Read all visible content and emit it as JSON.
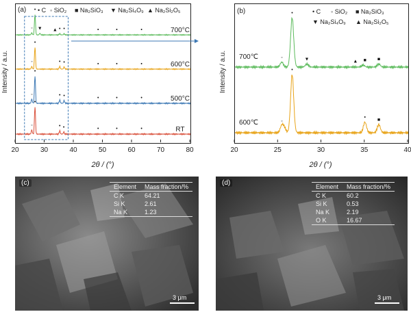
{
  "panel_a": {
    "label": "(a)",
    "legend": [
      {
        "symbol": "•",
        "text": "C"
      },
      {
        "symbol": "◦",
        "text": "SiO2"
      },
      {
        "symbol": "■",
        "text": "Na2SiO3"
      },
      {
        "symbol": "▼",
        "text": "Na2Si4O9"
      },
      {
        "symbol": "▲",
        "text": "Na2Si2O5"
      }
    ],
    "xlabel": "2θ / (°)",
    "ylabel": "Intensity / a.u.",
    "xticks": [
      "20",
      "30",
      "40",
      "50",
      "60",
      "70",
      "80"
    ],
    "colors": {
      "RT": "#d9503b",
      "500": "#3c78b4",
      "600": "#e8a317",
      "700": "#5aba5a",
      "box": "#3c78b4"
    }
  },
  "panel_b": {
    "label": "(b)",
    "legend": [
      {
        "symbol": "•",
        "text": "C"
      },
      {
        "symbol": "◦",
        "text": "SiO2"
      },
      {
        "symbol": "■",
        "text": "Na2SiO3"
      },
      {
        "symbol": "▼",
        "text": "Na2Si4O9"
      },
      {
        "symbol": "▲",
        "text": "Na2Si2O5"
      }
    ],
    "xlabel": "2θ / (°)",
    "ylabel": "Intensity / a.u.",
    "xticks": [
      "20",
      "25",
      "30",
      "35",
      "40"
    ]
  },
  "chart_data": [
    {
      "type": "line",
      "xlim": [
        20,
        80
      ],
      "xlabel": "2θ / (°)",
      "ylabel": "Intensity / a.u.",
      "series": [
        {
          "name": "RT",
          "peaks": [
            {
              "x": 26.6,
              "h": 1.0
            },
            {
              "x": 25.5,
              "h": 0.15
            },
            {
              "x": 35.1,
              "h": 0.12
            },
            {
              "x": 36.5,
              "h": 0.08
            }
          ]
        },
        {
          "name": "500°C",
          "peaks": [
            {
              "x": 26.6,
              "h": 1.0
            },
            {
              "x": 25.5,
              "h": 0.15
            },
            {
              "x": 35.1,
              "h": 0.12
            },
            {
              "x": 36.6,
              "h": 0.1
            }
          ]
        },
        {
          "name": "600°C",
          "peaks": [
            {
              "x": 26.6,
              "h": 1.0
            },
            {
              "x": 25.5,
              "h": 0.12
            },
            {
              "x": 35.1,
              "h": 0.12
            },
            {
              "x": 36.6,
              "h": 0.1
            }
          ]
        },
        {
          "name": "700°C",
          "peaks": [
            {
              "x": 26.6,
              "h": 1.0
            },
            {
              "x": 25.5,
              "h": 0.1
            },
            {
              "x": 28.3,
              "h": 0.08
            },
            {
              "x": 35.1,
              "h": 0.06
            },
            {
              "x": 36.6,
              "h": 0.06
            }
          ]
        }
      ],
      "markers": [
        {
          "series": "RT",
          "x": 25.5,
          "sym": "◦"
        },
        {
          "series": "RT",
          "x": 26.6,
          "sym": "•"
        },
        {
          "series": "RT",
          "x": 35.1,
          "sym": "•"
        },
        {
          "series": "RT",
          "x": 36.5,
          "sym": "•"
        },
        {
          "series": "RT",
          "x": 48.3,
          "sym": "•"
        },
        {
          "series": "RT",
          "x": 54.7,
          "sym": "•"
        },
        {
          "series": "RT",
          "x": 63.2,
          "sym": "•"
        },
        {
          "series": "500°C",
          "x": 25.5,
          "sym": "◦"
        },
        {
          "series": "500°C",
          "x": 26.6,
          "sym": "•"
        },
        {
          "series": "500°C",
          "x": 35.1,
          "sym": "•"
        },
        {
          "series": "500°C",
          "x": 36.6,
          "sym": "•"
        },
        {
          "series": "500°C",
          "x": 48.3,
          "sym": "•"
        },
        {
          "series": "500°C",
          "x": 54.7,
          "sym": "•"
        },
        {
          "series": "500°C",
          "x": 63.2,
          "sym": "•"
        },
        {
          "series": "600°C",
          "x": 25.5,
          "sym": "◦"
        },
        {
          "series": "600°C",
          "x": 26.6,
          "sym": "•"
        },
        {
          "series": "600°C",
          "x": 35.1,
          "sym": "•"
        },
        {
          "series": "600°C",
          "x": 36.6,
          "sym": "•"
        },
        {
          "series": "600°C",
          "x": 48.3,
          "sym": "•"
        },
        {
          "series": "600°C",
          "x": 54.7,
          "sym": "•"
        },
        {
          "series": "600°C",
          "x": 63.2,
          "sym": "•"
        },
        {
          "series": "700°C",
          "x": 25.5,
          "sym": "◦"
        },
        {
          "series": "700°C",
          "x": 26.6,
          "sym": "•"
        },
        {
          "series": "700°C",
          "x": 28.3,
          "sym": "▼"
        },
        {
          "series": "700°C",
          "x": 33.5,
          "sym": "▲"
        },
        {
          "series": "700°C",
          "x": 35.1,
          "sym": "•"
        },
        {
          "series": "700°C",
          "x": 36.6,
          "sym": "•"
        },
        {
          "series": "700°C",
          "x": 48.3,
          "sym": "•"
        },
        {
          "series": "700°C",
          "x": 54.7,
          "sym": "•"
        },
        {
          "series": "700°C",
          "x": 63.2,
          "sym": "•"
        }
      ],
      "curve_labels": [
        "RT",
        "500°C",
        "600°C",
        "700°C"
      ]
    },
    {
      "type": "line",
      "xlim": [
        20,
        40
      ],
      "xlabel": "2θ / (°)",
      "ylabel": "Intensity / a.u.",
      "series": [
        {
          "name": "600℃",
          "peaks": [
            {
              "x": 26.6,
              "h": 1.0
            },
            {
              "x": 25.4,
              "h": 0.12
            },
            {
              "x": 25.7,
              "h": 0.08
            },
            {
              "x": 35.0,
              "h": 0.18
            },
            {
              "x": 36.6,
              "h": 0.14
            }
          ]
        },
        {
          "name": "700℃",
          "peaks": [
            {
              "x": 26.6,
              "h": 1.0
            },
            {
              "x": 25.4,
              "h": 0.1
            },
            {
              "x": 28.3,
              "h": 0.06
            },
            {
              "x": 34.8,
              "h": 0.04
            },
            {
              "x": 36.6,
              "h": 0.06
            }
          ]
        }
      ],
      "markers": [
        {
          "series": "600℃",
          "x": 25.4,
          "sym": "◦"
        },
        {
          "series": "600℃",
          "x": 26.6,
          "sym": "•"
        },
        {
          "series": "600℃",
          "x": 35.0,
          "sym": "•"
        },
        {
          "series": "600℃",
          "x": 36.6,
          "sym": "■"
        },
        {
          "series": "700℃",
          "x": 25.4,
          "sym": "◦"
        },
        {
          "series": "700℃",
          "x": 26.6,
          "sym": "•"
        },
        {
          "series": "700℃",
          "x": 28.3,
          "sym": "▼"
        },
        {
          "series": "700℃",
          "x": 33.9,
          "sym": "▲"
        },
        {
          "series": "700℃",
          "x": 35.0,
          "sym": "■"
        },
        {
          "series": "700℃",
          "x": 36.6,
          "sym": "■"
        }
      ],
      "curve_labels": [
        "600℃",
        "700℃"
      ]
    }
  ],
  "panel_c": {
    "label": "(c)",
    "table_header": [
      "Element",
      "Mass fraction/%"
    ],
    "rows": [
      [
        "C K",
        "64.21"
      ],
      [
        "Si K",
        "2.61"
      ],
      [
        "Na K",
        "1.23"
      ]
    ],
    "scale": "3 μm"
  },
  "panel_d": {
    "label": "(d)",
    "table_header": [
      "Element",
      "Mass fraction/%"
    ],
    "rows": [
      [
        "C K",
        "60.2"
      ],
      [
        "Si K",
        "0.53"
      ],
      [
        "Na K",
        "2.19"
      ],
      [
        "O K",
        "16.67"
      ]
    ],
    "scale": "3 μm"
  }
}
